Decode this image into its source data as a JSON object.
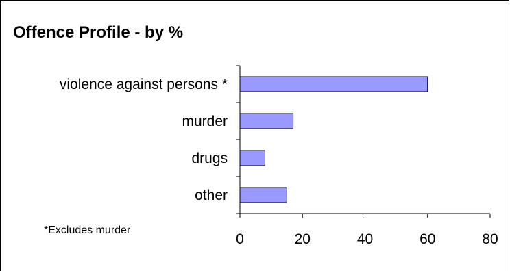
{
  "chart_data": {
    "type": "bar",
    "orientation": "horizontal",
    "title": "Offence Profile - by %",
    "categories": [
      "violence against persons *",
      "murder",
      "drugs",
      "other"
    ],
    "values": [
      60,
      17,
      8,
      15
    ],
    "xlim": [
      0,
      80
    ],
    "xticks": [
      "0",
      "20",
      "40",
      "60",
      "80"
    ],
    "xlabel": "",
    "ylabel": "",
    "grid": false,
    "legend": "none",
    "annotation": "*Excludes murder",
    "bar_color": "#9999ff",
    "bar_edge_color": "#000000"
  }
}
